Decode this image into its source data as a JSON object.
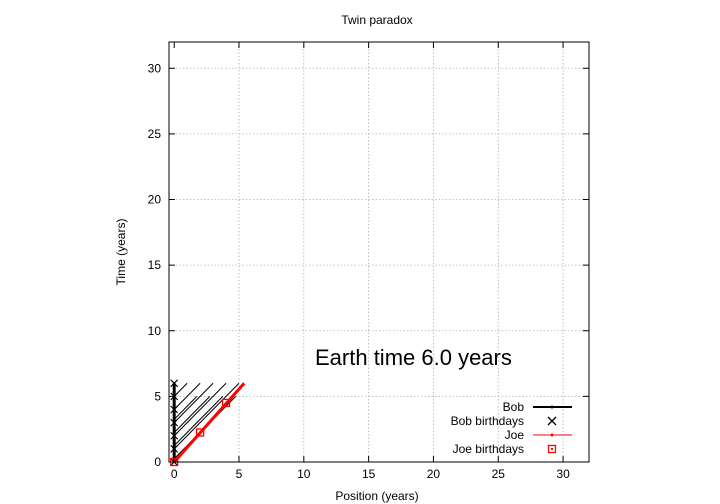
{
  "chart_data": {
    "type": "line",
    "title": "Twin paradox",
    "xlabel": "Position (years)",
    "ylabel": "Time (years)",
    "xlim": [
      -0.4,
      32
    ],
    "ylim": [
      0,
      32
    ],
    "xticks": [
      0,
      5,
      10,
      15,
      20,
      25,
      30
    ],
    "yticks": [
      0,
      5,
      10,
      15,
      20,
      25,
      30
    ],
    "grid": true,
    "legend_position": "bottom-right",
    "annotation": "Earth time  6.0 years",
    "series": [
      {
        "name": "Bob",
        "color": "#000000",
        "x": [
          0,
          0
        ],
        "y": [
          0,
          6.0
        ]
      },
      {
        "name": "Bob birthdays",
        "color": "#000000",
        "marker": "x",
        "x": [
          0,
          0,
          0,
          0,
          0,
          0,
          0
        ],
        "y": [
          0,
          1,
          2,
          3,
          4,
          5,
          6
        ]
      },
      {
        "name": "Joe",
        "color": "#ff0000",
        "x": [
          0,
          5.4
        ],
        "y": [
          0,
          6.0
        ]
      },
      {
        "name": "Joe birthdays",
        "color": "#ff0000",
        "marker": "square",
        "x": [
          0,
          2.0,
          4.0
        ],
        "y": [
          0,
          2.25,
          4.5
        ]
      }
    ],
    "signal_lines": {
      "color": "#000000",
      "segments": [
        {
          "x": [
            0,
            5
          ],
          "y": [
            1,
            6
          ]
        },
        {
          "x": [
            0,
            4
          ],
          "y": [
            2,
            6
          ]
        },
        {
          "x": [
            0,
            3
          ],
          "y": [
            3,
            6
          ]
        },
        {
          "x": [
            0,
            2
          ],
          "y": [
            4,
            6
          ]
        },
        {
          "x": [
            0,
            1
          ],
          "y": [
            5,
            6
          ]
        },
        {
          "x": [
            0,
            4.75
          ],
          "y": [
            0.25,
            5
          ]
        },
        {
          "x": [
            0,
            3.75
          ],
          "y": [
            1.25,
            5
          ]
        },
        {
          "x": [
            0,
            2.75
          ],
          "y": [
            2.25,
            5
          ]
        },
        {
          "x": [
            0,
            1.75
          ],
          "y": [
            3.25,
            5
          ]
        }
      ]
    }
  }
}
